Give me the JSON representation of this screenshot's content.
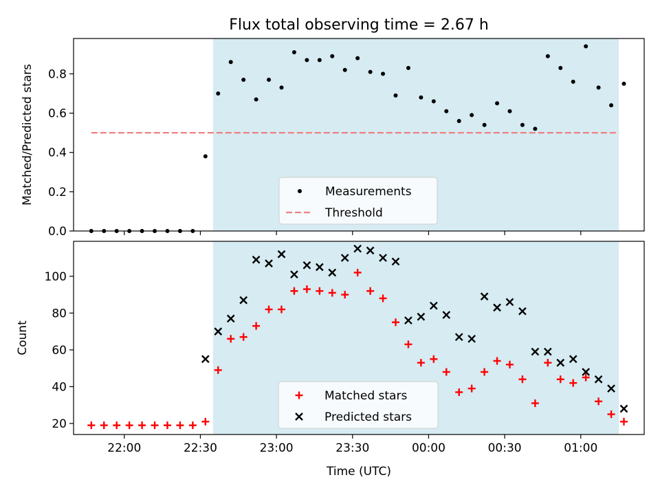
{
  "title": "Flux total observing time = 2.67 h",
  "colors": {
    "band": "#add8e6",
    "measurement": "#000000",
    "threshold": "#f08080",
    "matched": "#ff0000",
    "predicted": "#000000"
  },
  "chart_data": [
    {
      "type": "scatter",
      "panel": "top",
      "xlabel": "",
      "ylabel": "Matched/Predicted stars",
      "ylim": [
        0,
        0.98
      ],
      "yticks": [
        0.0,
        0.2,
        0.4,
        0.6,
        0.8
      ],
      "ytick_labels": [
        "0.0",
        "0.2",
        "0.4",
        "0.6",
        "0.8"
      ],
      "xlim": [
        "21:40",
        "01:25"
      ],
      "shaded_interval": [
        "22:35",
        "01:15"
      ],
      "legend_position": "lower center",
      "series": [
        {
          "name": "Measurements",
          "marker": "dot",
          "x": [
            "21:47",
            "21:52",
            "21:57",
            "22:02",
            "22:07",
            "22:12",
            "22:17",
            "22:22",
            "22:27",
            "22:32",
            "22:37",
            "22:42",
            "22:47",
            "22:52",
            "22:57",
            "23:02",
            "23:07",
            "23:12",
            "23:17",
            "23:22",
            "23:27",
            "23:32",
            "23:37",
            "23:42",
            "23:47",
            "23:52",
            "23:57",
            "00:02",
            "00:07",
            "00:12",
            "00:17",
            "00:22",
            "00:27",
            "00:32",
            "00:37",
            "00:42",
            "00:47",
            "00:52",
            "00:57",
            "01:02",
            "01:07",
            "01:12",
            "01:17"
          ],
          "y": [
            0.0,
            0.0,
            0.0,
            0.0,
            0.0,
            0.0,
            0.0,
            0.0,
            0.0,
            0.38,
            0.7,
            0.86,
            0.77,
            0.67,
            0.77,
            0.73,
            0.91,
            0.87,
            0.87,
            0.89,
            0.82,
            0.88,
            0.81,
            0.8,
            0.69,
            0.83,
            0.68,
            0.66,
            0.61,
            0.56,
            0.59,
            0.54,
            0.65,
            0.61,
            0.54,
            0.52,
            0.89,
            0.83,
            0.76,
            0.94,
            0.73,
            0.64,
            0.75
          ]
        },
        {
          "name": "Threshold",
          "style": "dashed",
          "x": [
            "21:47",
            "01:15"
          ],
          "y": [
            0.5,
            0.5
          ]
        }
      ]
    },
    {
      "type": "scatter",
      "panel": "bottom",
      "xlabel": "Time (UTC)",
      "ylabel": "Count",
      "ylim": [
        14,
        119
      ],
      "yticks": [
        20,
        40,
        60,
        80,
        100
      ],
      "ytick_labels": [
        "20",
        "40",
        "60",
        "80",
        "100"
      ],
      "xlim": [
        "21:40",
        "01:25"
      ],
      "xticks": [
        "22:00",
        "22:30",
        "23:00",
        "23:30",
        "00:00",
        "00:30",
        "01:00"
      ],
      "xtick_labels": [
        "22:00",
        "22:30",
        "23:00",
        "23:30",
        "00:00",
        "00:30",
        "01:00"
      ],
      "shaded_interval": [
        "22:35",
        "01:15"
      ],
      "legend_position": "lower center",
      "series": [
        {
          "name": "Matched stars",
          "marker": "plus",
          "x": [
            "21:47",
            "21:52",
            "21:57",
            "22:02",
            "22:07",
            "22:12",
            "22:17",
            "22:22",
            "22:27",
            "22:32",
            "22:37",
            "22:42",
            "22:47",
            "22:52",
            "22:57",
            "23:02",
            "23:07",
            "23:12",
            "23:17",
            "23:22",
            "23:27",
            "23:32",
            "23:37",
            "23:42",
            "23:47",
            "23:52",
            "23:57",
            "00:02",
            "00:07",
            "00:12",
            "00:17",
            "00:22",
            "00:27",
            "00:32",
            "00:37",
            "00:42",
            "00:47",
            "00:52",
            "00:57",
            "01:02",
            "01:07",
            "01:12",
            "01:17"
          ],
          "y": [
            19,
            19,
            19,
            19,
            19,
            19,
            19,
            19,
            19,
            21,
            49,
            66,
            67,
            73,
            82,
            82,
            92,
            93,
            92,
            91,
            90,
            102,
            92,
            88,
            75,
            63,
            53,
            55,
            48,
            37,
            39,
            48,
            54,
            52,
            44,
            31,
            53,
            44,
            42,
            45,
            32,
            25,
            21
          ]
        },
        {
          "name": "Predicted stars",
          "marker": "x",
          "x": [
            "22:32",
            "22:37",
            "22:42",
            "22:47",
            "22:52",
            "22:57",
            "23:02",
            "23:07",
            "23:12",
            "23:17",
            "23:22",
            "23:27",
            "23:32",
            "23:37",
            "23:42",
            "23:47",
            "23:52",
            "23:57",
            "00:02",
            "00:07",
            "00:12",
            "00:17",
            "00:22",
            "00:27",
            "00:32",
            "00:37",
            "00:42",
            "00:47",
            "00:52",
            "00:57",
            "01:02",
            "01:07",
            "01:12",
            "01:17"
          ],
          "y": [
            55,
            70,
            77,
            87,
            109,
            107,
            112,
            101,
            106,
            105,
            102,
            110,
            115,
            114,
            110,
            108,
            76,
            78,
            84,
            79,
            67,
            66,
            89,
            83,
            86,
            81,
            59,
            59,
            53,
            55,
            48,
            44,
            39,
            28
          ]
        }
      ]
    }
  ]
}
